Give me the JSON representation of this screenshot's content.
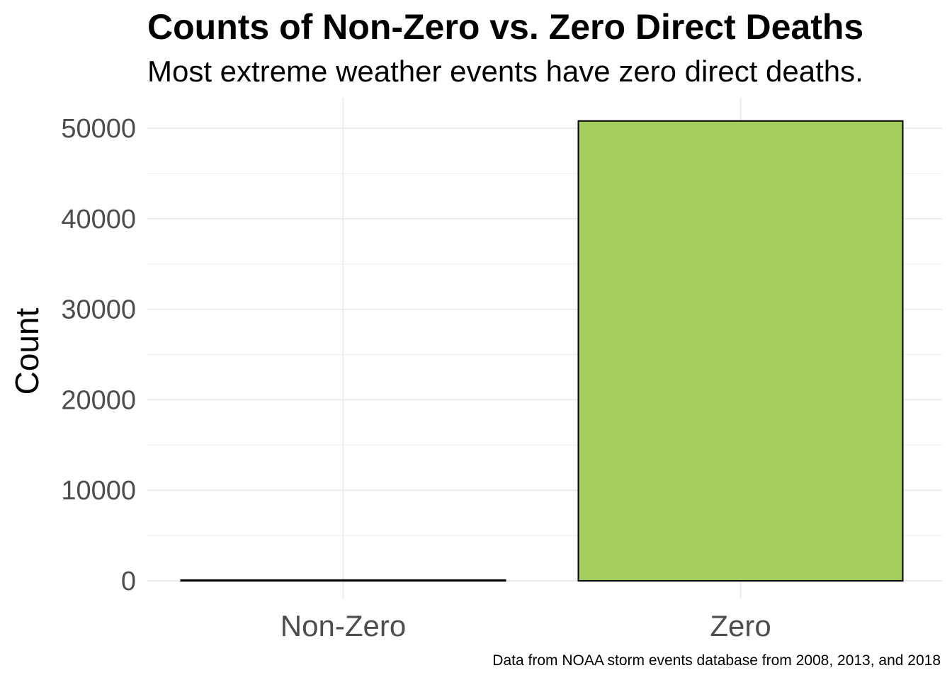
{
  "chart_data": {
    "type": "bar",
    "title": "Counts of Non-Zero vs. Zero Direct Deaths",
    "subtitle": "Most extreme weather events have zero direct deaths.",
    "caption": "Data from NOAA storm events database from 2008, 2013, and 2018",
    "xlabel": "",
    "ylabel": "Count",
    "categories": [
      "Non-Zero",
      "Zero"
    ],
    "values": [
      90,
      50800
    ],
    "bar_colors": [
      "#000000",
      "#a3cd5e"
    ],
    "bar_outline": "#000000",
    "ylim": [
      0,
      52000
    ],
    "yticks": [
      0,
      10000,
      20000,
      30000,
      40000,
      50000
    ],
    "ytick_labels": [
      "0",
      "10000",
      "20000",
      "30000",
      "40000",
      "50000"
    ],
    "grid": true,
    "legend": "none"
  }
}
